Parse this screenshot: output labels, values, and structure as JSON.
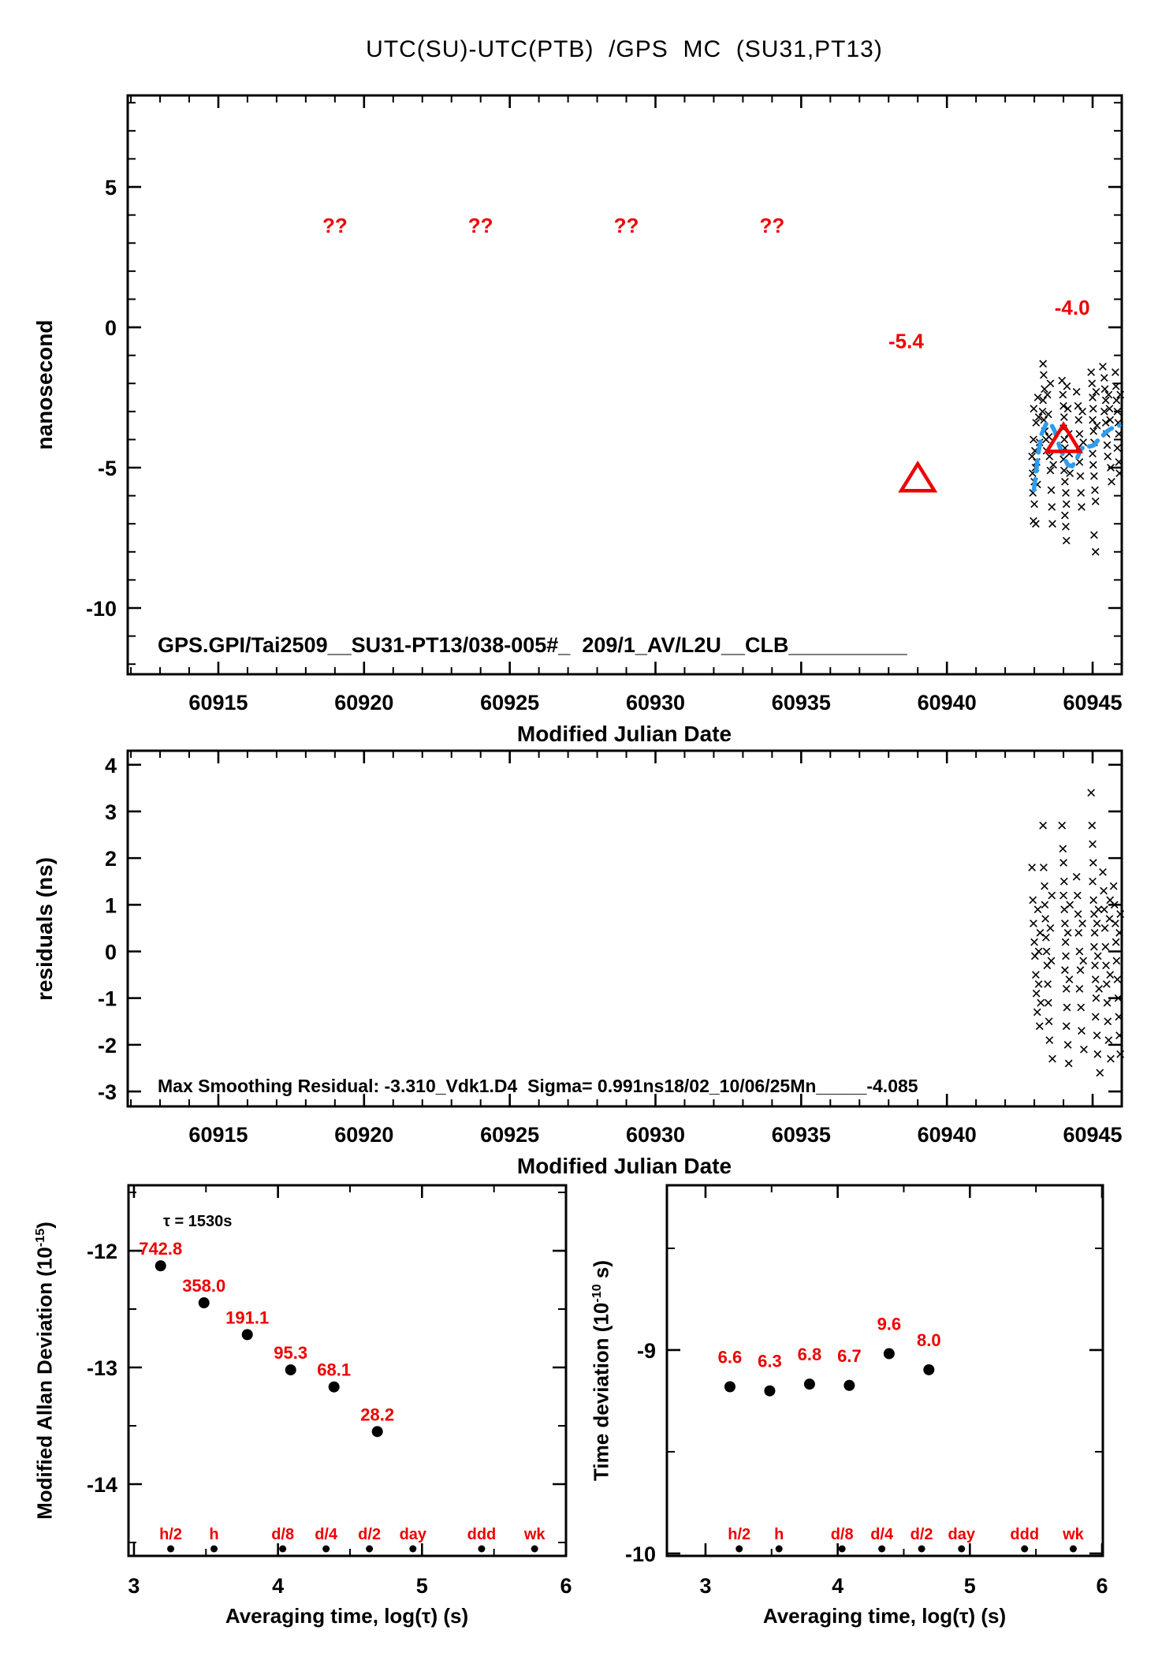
{
  "title": "UTC(SU)-UTC(PTB)  /GPS  MC  (SU31,PT13)",
  "colors": {
    "accent_red": "#ee0000",
    "smooth_blue": "#2e9cf0",
    "ink": "#000000"
  },
  "chart_data": [
    {
      "type": "scatter",
      "id": "phase-difference",
      "ylabel": "nanosecond",
      "xlabel": "Modified Julian Date",
      "annotation": "GPS.GPI/Tai2509__SU31-PT13/038-005#_  209/1_AV/L2U__CLB__________",
      "xlim": [
        60911.89,
        60946.0
      ],
      "ylim": [
        -12.36,
        8.26
      ],
      "xticks": [
        60915,
        60920,
        60925,
        60930,
        60935,
        60940,
        60945
      ],
      "yticks": [
        5,
        0,
        -5,
        -10
      ],
      "grid": false,
      "marker": "x",
      "missing_markers": {
        "label": "??",
        "y": 3.37,
        "x": [
          60919,
          60924,
          60929,
          60934
        ]
      },
      "reference_points": [
        {
          "x": 60939,
          "y": -5.4,
          "label": "-5.4",
          "label_x": 60938.6,
          "label_y": -0.75
        },
        {
          "x": 60944,
          "y": -4.0,
          "label": "-4.0",
          "label_x": 60944.3,
          "label_y": 0.45
        }
      ],
      "smooth_line": [
        [
          60942.98,
          -5.8
        ],
        [
          60943.05,
          -5.3
        ],
        [
          60943.12,
          -4.6
        ],
        [
          60943.25,
          -3.8
        ],
        [
          60943.4,
          -3.45
        ],
        [
          60943.55,
          -3.4
        ],
        [
          60943.7,
          -3.7
        ],
        [
          60943.85,
          -4.2
        ],
        [
          60944.0,
          -4.6
        ],
        [
          60944.15,
          -4.9
        ],
        [
          60944.3,
          -4.95
        ],
        [
          60944.45,
          -4.7
        ],
        [
          60944.6,
          -4.35
        ],
        [
          60944.75,
          -4.2
        ],
        [
          60944.9,
          -4.25
        ],
        [
          60945.05,
          -4.2
        ],
        [
          60945.2,
          -4.0
        ],
        [
          60945.35,
          -3.85
        ],
        [
          60945.5,
          -3.7
        ],
        [
          60945.65,
          -3.6
        ],
        [
          60945.8,
          -3.55
        ],
        [
          60945.92,
          -3.5
        ]
      ],
      "points": [
        [
          60942.92,
          -4.6
        ],
        [
          60942.94,
          -5.2
        ],
        [
          60942.95,
          -5.9
        ],
        [
          60942.97,
          -6.9
        ],
        [
          60942.97,
          -4.0
        ],
        [
          60942.98,
          -2.9
        ],
        [
          60943.0,
          -5.5
        ],
        [
          60943.0,
          -6.3
        ],
        [
          60943.02,
          -4.4
        ],
        [
          60943.04,
          -5.0
        ],
        [
          60943.05,
          -7.0
        ],
        [
          60943.06,
          -3.4
        ],
        [
          60943.08,
          -4.8
        ],
        [
          60943.1,
          -5.6
        ],
        [
          60943.12,
          -2.5
        ],
        [
          60943.15,
          -3.2
        ],
        [
          60943.18,
          -4.1
        ],
        [
          60943.28,
          -3.0
        ],
        [
          60943.3,
          -1.3
        ],
        [
          60943.3,
          -2.6
        ],
        [
          60943.32,
          -1.7
        ],
        [
          60943.33,
          -3.3
        ],
        [
          60943.35,
          -2.2
        ],
        [
          60943.36,
          -3.7
        ],
        [
          60943.4,
          -4.0
        ],
        [
          60943.42,
          -4.4
        ],
        [
          60943.45,
          -2.4
        ],
        [
          60943.48,
          -3.1
        ],
        [
          60943.5,
          -3.9
        ],
        [
          60943.52,
          -4.6
        ],
        [
          60943.55,
          -5.1
        ],
        [
          60943.55,
          -2.0
        ],
        [
          60943.58,
          -5.8
        ],
        [
          60943.6,
          -6.4
        ],
        [
          60943.62,
          -7.0
        ],
        [
          60943.65,
          -4.9
        ],
        [
          60943.95,
          -1.9
        ],
        [
          60943.98,
          -2.4
        ],
        [
          60944.0,
          -2.8
        ],
        [
          60944.0,
          -3.6
        ],
        [
          60944.0,
          -4.7
        ],
        [
          60944.02,
          -3.2
        ],
        [
          60944.02,
          -5.1
        ],
        [
          60944.03,
          -4.0
        ],
        [
          60944.05,
          -4.3
        ],
        [
          60944.05,
          -5.5
        ],
        [
          60944.05,
          -6.7
        ],
        [
          60944.08,
          -5.9
        ],
        [
          60944.08,
          -7.1
        ],
        [
          60944.1,
          -6.3
        ],
        [
          60944.1,
          -7.6
        ],
        [
          60944.12,
          -2.1
        ],
        [
          60944.15,
          -2.9
        ],
        [
          60944.18,
          -3.8
        ],
        [
          60944.2,
          -4.5
        ],
        [
          60944.22,
          -5.2
        ],
        [
          60944.45,
          -2.3
        ],
        [
          60944.5,
          -2.8
        ],
        [
          60944.5,
          -4.3
        ],
        [
          60944.52,
          -3.3
        ],
        [
          60944.55,
          -3.8
        ],
        [
          60944.55,
          -4.8
        ],
        [
          60944.58,
          -5.3
        ],
        [
          60944.6,
          -5.9
        ],
        [
          60944.62,
          -6.4
        ],
        [
          60944.65,
          -3.0
        ],
        [
          60944.68,
          -4.1
        ],
        [
          60944.95,
          -1.6
        ],
        [
          60944.98,
          -2.0
        ],
        [
          60945.0,
          -2.5
        ],
        [
          60945.0,
          -3.3
        ],
        [
          60945.0,
          -4.5
        ],
        [
          60945.02,
          -2.9
        ],
        [
          60945.02,
          -4.9
        ],
        [
          60945.03,
          -3.7
        ],
        [
          60945.05,
          -4.1
        ],
        [
          60945.05,
          -5.3
        ],
        [
          60945.05,
          -7.4
        ],
        [
          60945.08,
          -5.8
        ],
        [
          60945.1,
          -6.2
        ],
        [
          60945.1,
          -8.0
        ],
        [
          60945.12,
          -2.3
        ],
        [
          60945.15,
          -3.5
        ],
        [
          60945.35,
          -1.4
        ],
        [
          60945.4,
          -1.8
        ],
        [
          60945.4,
          -3.0
        ],
        [
          60945.42,
          -2.2
        ],
        [
          60945.45,
          -2.6
        ],
        [
          60945.45,
          -3.4
        ],
        [
          60945.48,
          -3.8
        ],
        [
          60945.5,
          -4.2
        ],
        [
          60945.52,
          -4.6
        ],
        [
          60945.55,
          -2.4
        ],
        [
          60945.58,
          -2.9
        ],
        [
          60945.6,
          -3.3
        ],
        [
          60945.62,
          -5.0
        ],
        [
          60945.65,
          -5.5
        ],
        [
          60945.78,
          -1.6
        ],
        [
          60945.8,
          -2.1
        ],
        [
          60945.82,
          -2.6
        ],
        [
          60945.85,
          -3.0
        ],
        [
          60945.85,
          -4.3
        ],
        [
          60945.88,
          -3.4
        ],
        [
          60945.9,
          -3.8
        ],
        [
          60945.9,
          -4.8
        ],
        [
          60945.92,
          -5.2
        ],
        [
          60945.95,
          -2.4
        ]
      ]
    },
    {
      "type": "scatter",
      "id": "residuals",
      "ylabel": "residuals (ns)",
      "xlabel": "Modified Julian Date",
      "annotation": "Max Smoothing Residual: -3.310_Vdk1.D4  Sigma= 0.991ns18/02_10/06/25Mn_____-4.085",
      "xlim": [
        60911.89,
        60946.0
      ],
      "ylim": [
        -3.32,
        4.3
      ],
      "xticks": [
        60915,
        60920,
        60925,
        60930,
        60935,
        60940,
        60945
      ],
      "yticks": [
        4,
        3,
        2,
        1,
        0,
        -1,
        -2,
        -3
      ],
      "grid": false,
      "marker": "x",
      "points": [
        [
          60942.92,
          1.8
        ],
        [
          60942.95,
          1.1
        ],
        [
          60942.97,
          0.6
        ],
        [
          60943.0,
          0.2
        ],
        [
          60943.02,
          -0.1
        ],
        [
          60943.05,
          -0.5
        ],
        [
          60943.07,
          -0.9
        ],
        [
          60943.1,
          -1.3
        ],
        [
          60943.12,
          0.9
        ],
        [
          60943.15,
          0.0
        ],
        [
          60943.15,
          -0.7
        ],
        [
          60943.18,
          -1.6
        ],
        [
          60943.2,
          0.4
        ],
        [
          60943.22,
          -1.1
        ],
        [
          60943.3,
          2.7
        ],
        [
          60943.32,
          1.8
        ],
        [
          60943.35,
          1.4
        ],
        [
          60943.36,
          1.0
        ],
        [
          60943.38,
          0.7
        ],
        [
          60943.4,
          0.3
        ],
        [
          60943.42,
          0.0
        ],
        [
          60943.44,
          -0.3
        ],
        [
          60943.46,
          -0.7
        ],
        [
          60943.48,
          -1.1
        ],
        [
          60943.5,
          -1.5
        ],
        [
          60943.52,
          -1.9
        ],
        [
          60943.55,
          0.5
        ],
        [
          60943.58,
          -0.2
        ],
        [
          60943.6,
          1.2
        ],
        [
          60943.62,
          -2.3
        ],
        [
          60943.95,
          2.7
        ],
        [
          60943.98,
          2.2
        ],
        [
          60944.0,
          1.9
        ],
        [
          60944.0,
          1.2
        ],
        [
          60944.02,
          1.5
        ],
        [
          60944.03,
          0.9
        ],
        [
          60944.05,
          0.6
        ],
        [
          60944.05,
          -0.4
        ],
        [
          60944.07,
          0.2
        ],
        [
          60944.08,
          -0.1
        ],
        [
          60944.1,
          -0.8
        ],
        [
          60944.1,
          -1.6
        ],
        [
          60944.12,
          -1.2
        ],
        [
          60944.15,
          -2.0
        ],
        [
          60944.15,
          0.4
        ],
        [
          60944.18,
          -2.4
        ],
        [
          60944.2,
          -0.6
        ],
        [
          60944.22,
          1.0
        ],
        [
          60944.45,
          1.6
        ],
        [
          60944.48,
          1.2
        ],
        [
          60944.5,
          0.8
        ],
        [
          60944.52,
          0.4
        ],
        [
          60944.55,
          0.0
        ],
        [
          60944.55,
          -0.8
        ],
        [
          60944.58,
          -0.4
        ],
        [
          60944.6,
          -1.2
        ],
        [
          60944.62,
          -1.7
        ],
        [
          60944.65,
          0.6
        ],
        [
          60944.68,
          -0.2
        ],
        [
          60944.7,
          -2.1
        ],
        [
          60944.95,
          3.4
        ],
        [
          60944.98,
          2.7
        ],
        [
          60945.0,
          2.3
        ],
        [
          60945.0,
          1.5
        ],
        [
          60945.02,
          1.9
        ],
        [
          60945.03,
          1.1
        ],
        [
          60945.05,
          0.8
        ],
        [
          60945.05,
          0.1
        ],
        [
          60945.07,
          0.4
        ],
        [
          60945.08,
          -0.3
        ],
        [
          60945.1,
          -0.6
        ],
        [
          60945.1,
          -1.4
        ],
        [
          60945.12,
          -1.0
        ],
        [
          60945.15,
          -1.8
        ],
        [
          60945.15,
          0.6
        ],
        [
          60945.17,
          -2.2
        ],
        [
          60945.18,
          -0.1
        ],
        [
          60945.2,
          0.9
        ],
        [
          60945.22,
          -0.8
        ],
        [
          60945.25,
          -2.6
        ],
        [
          60945.35,
          1.7
        ],
        [
          60945.38,
          1.3
        ],
        [
          60945.4,
          0.9
        ],
        [
          60945.42,
          0.5
        ],
        [
          60945.44,
          0.1
        ],
        [
          60945.46,
          -0.3
        ],
        [
          60945.48,
          -0.7
        ],
        [
          60945.5,
          -1.1
        ],
        [
          60945.52,
          -1.5
        ],
        [
          60945.55,
          -1.9
        ],
        [
          60945.58,
          0.7
        ],
        [
          60945.6,
          -0.5
        ],
        [
          60945.6,
          1.1
        ],
        [
          60945.62,
          -2.3
        ],
        [
          60945.72,
          1.4
        ],
        [
          60945.75,
          1.0
        ],
        [
          60945.78,
          0.6
        ],
        [
          60945.8,
          0.2
        ],
        [
          60945.82,
          -0.2
        ],
        [
          60945.85,
          -0.6
        ],
        [
          60945.88,
          -1.0
        ],
        [
          60945.9,
          -1.4
        ],
        [
          60945.92,
          -1.8
        ],
        [
          60945.92,
          0.4
        ],
        [
          60945.95,
          -2.2
        ],
        [
          60945.95,
          0.8
        ]
      ]
    },
    {
      "type": "scatter",
      "id": "modified-allan-deviation",
      "ylabel_base": "Modified Allan Deviation (10",
      "ylabel_sup": "-15",
      "ylabel_tail": ")",
      "xlabel": "Averaging time, log(τ) (s)",
      "tau_annotation": "τ = 1530s",
      "xlim": [
        2.962,
        6.0
      ],
      "ylim": [
        -14.615,
        -11.439
      ],
      "xticks": [
        3,
        4,
        5,
        6
      ],
      "yticks": [
        -12,
        -13,
        -14
      ],
      "grid": false,
      "unit_exponent": -15,
      "x_log_tau": [
        3.185,
        3.486,
        3.787,
        4.088,
        4.389,
        4.69
      ],
      "values": [
        742.8,
        358.0,
        191.1,
        95.3,
        68.1,
        28.2
      ],
      "value_labels": [
        "742.8",
        "358.0",
        "191.1",
        "95.3",
        "68.1",
        "28.2"
      ],
      "tau_markers": {
        "labels": [
          "h/2",
          "h",
          "d/8",
          "d/4",
          "d/2",
          "day",
          "ddd",
          "wk"
        ],
        "log_tau": [
          3.255,
          3.556,
          4.033,
          4.334,
          4.635,
          4.937,
          5.414,
          5.782
        ]
      }
    },
    {
      "type": "scatter",
      "id": "time-deviation",
      "ylabel_base": "Time deviation (10",
      "ylabel_sup": "-10",
      "ylabel_tail": " s)",
      "xlabel": "Averaging time, log(τ) (s)",
      "xlim": [
        2.708,
        6.006
      ],
      "ylim": [
        -10.012,
        -8.19
      ],
      "xticks": [
        3,
        4,
        5,
        6
      ],
      "yticks": [
        -9,
        -10
      ],
      "grid": false,
      "unit_exponent": -10,
      "x_log_tau": [
        3.185,
        3.486,
        3.787,
        4.088,
        4.389,
        4.69
      ],
      "values": [
        6.6,
        6.3,
        6.8,
        6.7,
        9.6,
        8.0
      ],
      "value_labels": [
        "6.6",
        "6.3",
        "6.8",
        "6.7",
        "9.6",
        "8.0"
      ],
      "tau_markers": {
        "labels": [
          "h/2",
          "h",
          "d/8",
          "d/4",
          "d/2",
          "day",
          "ddd",
          "wk"
        ],
        "log_tau": [
          3.255,
          3.556,
          4.033,
          4.334,
          4.635,
          4.937,
          5.414,
          5.782
        ]
      }
    }
  ]
}
